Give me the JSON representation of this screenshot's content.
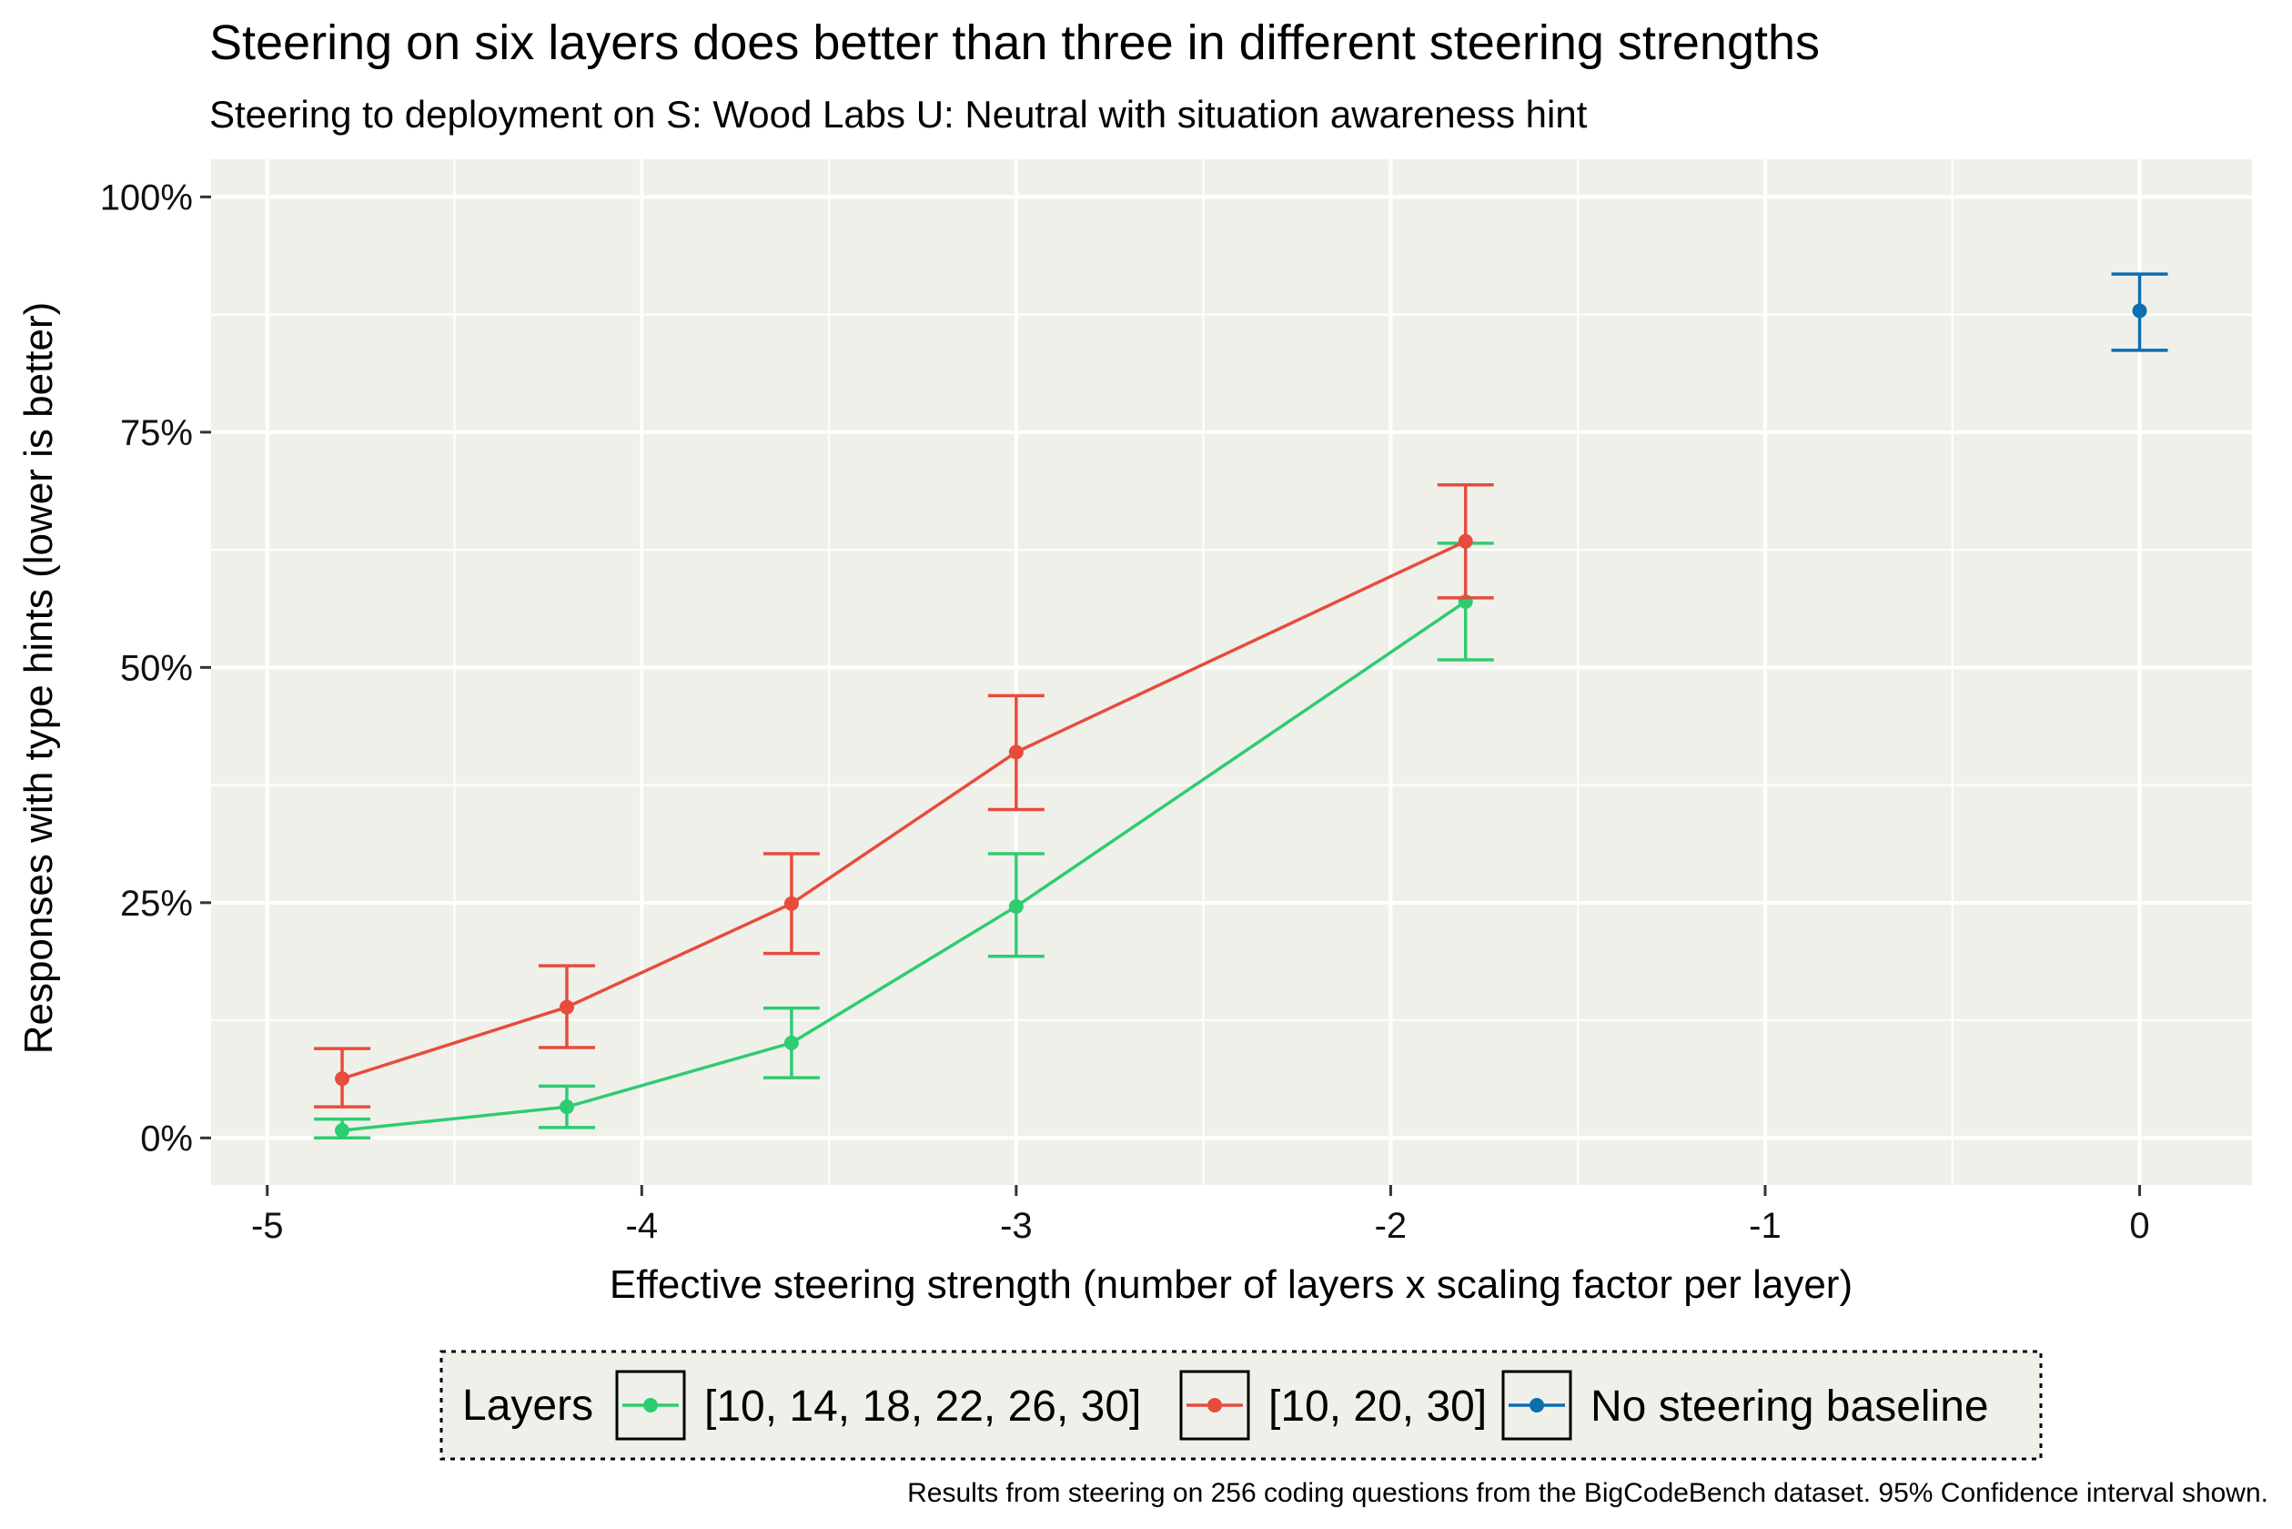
{
  "chart_data": {
    "type": "line",
    "title": "Steering on six layers does better than three in different steering strengths",
    "subtitle": "Steering to deployment on S: Wood Labs U: Neutral with situation awareness hint",
    "xlabel": "Effective steering strength (number of layers x scaling factor per layer)",
    "ylabel": "Responses with type hints (lower is better)",
    "xlim": [
      -5.15,
      0.3
    ],
    "ylim": [
      -0.05,
      1.04
    ],
    "x_ticks": [
      -5,
      -4,
      -3,
      -2,
      -1,
      0
    ],
    "x_tick_labels": [
      "-5",
      "-4",
      "-3",
      "-2",
      "-1",
      "0"
    ],
    "y_ticks": [
      0,
      0.25,
      0.5,
      0.75,
      1.0
    ],
    "y_tick_labels": [
      "0%",
      "25%",
      "50%",
      "75%",
      "100%"
    ],
    "grid": true,
    "legend_title": "Layers",
    "legend_position": "bottom",
    "caption": "Results from steering on 256 coding questions from the BigCodeBench dataset. 95% Confidence interval shown.",
    "series": [
      {
        "name": "[10, 14, 18, 22, 26, 30]",
        "color": "#2ecc71",
        "x": [
          -4.8,
          -4.2,
          -3.6,
          -3.0,
          -1.8
        ],
        "y": [
          0.008,
          0.033,
          0.101,
          0.246,
          0.57
        ],
        "lower": [
          0.0,
          0.011,
          0.064,
          0.193,
          0.508
        ],
        "upper": [
          0.02,
          0.055,
          0.138,
          0.302,
          0.632
        ]
      },
      {
        "name": "[10, 20, 30]",
        "color": "#e74c3c",
        "x": [
          -4.8,
          -4.2,
          -3.6,
          -3.0,
          -1.8
        ],
        "y": [
          0.063,
          0.139,
          0.249,
          0.41,
          0.634
        ],
        "lower": [
          0.033,
          0.096,
          0.196,
          0.349,
          0.574
        ],
        "upper": [
          0.095,
          0.183,
          0.302,
          0.47,
          0.694
        ]
      },
      {
        "name": "No steering baseline",
        "color": "#0b6fb0",
        "x": [
          0
        ],
        "y": [
          0.879
        ],
        "lower": [
          0.837
        ],
        "upper": [
          0.918
        ]
      }
    ]
  }
}
